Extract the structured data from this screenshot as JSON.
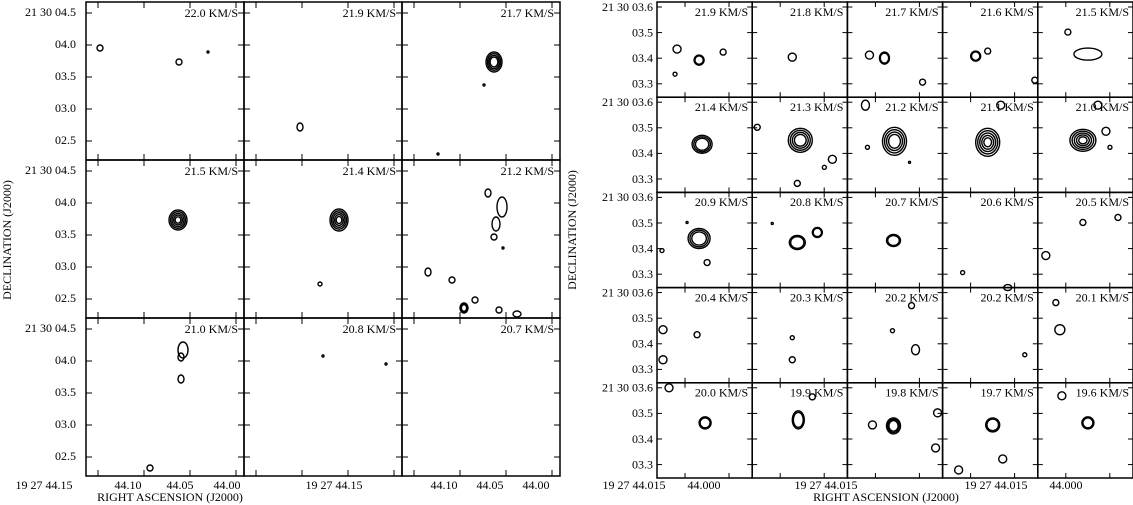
{
  "left_figure": {
    "panels": [
      "22.0 KM/S",
      "21.9 KM/S",
      "21.7 KM/S",
      "21.5 KM/S",
      "21.4 KM/S",
      "21.2 KM/S",
      "21.0 KM/S",
      "20.8 KM/S",
      "20.7 KM/S"
    ],
    "y_ticks": [
      [
        "21 30 04.5",
        "04.0",
        "03.5",
        "03.0",
        "02.5"
      ],
      [
        "21 30 04.5",
        "04.0",
        "03.5",
        "03.0",
        "02.5"
      ],
      [
        "21 30 04.5",
        "04.0",
        "03.5",
        "03.0",
        "02.5"
      ]
    ],
    "x_ticks": [
      [
        "19 27 44.15",
        "44.10",
        "44.05",
        "44.00"
      ],
      [
        "19 27 44.15"
      ],
      [
        "44.10",
        "44.05",
        "44.00"
      ]
    ],
    "x_label": "RIGHT ASCENSION (J2000)",
    "y_label": "DECLINATION (J2000)"
  },
  "right_figure": {
    "panels": [
      "21.9 KM/S",
      "21.8 KM/S",
      "21.7 KM/S",
      "21.6 KM/S",
      "21.5 KM/S",
      "21.4 KM/S",
      "21.3 KM/S",
      "21.2 KM/S",
      "21.1 KM/S",
      "21.0 KM/S",
      "20.9 KM/S",
      "20.8 KM/S",
      "20.7 KM/S",
      "20.6 KM/S",
      "20.5 KM/S",
      "20.4 KM/S",
      "20.3 KM/S",
      "20.2 KM/S",
      "20.2 KM/S",
      "20.1 KM/S",
      "20.0 KM/S",
      "19.9 KM/S",
      "19.8 KM/S",
      "19.7 KM/S",
      "19.6 KM/S"
    ],
    "y_ticks": [
      [
        "21 30 03.6",
        "03.5",
        "03.4",
        "03.3"
      ],
      [
        "21 30 03.6",
        "03.5",
        "03.4",
        "03.3"
      ],
      [
        "21 30 03.6",
        "03.5",
        "03.4",
        "03.3"
      ],
      [
        "21 30 03.6",
        "03.5",
        "03.4",
        "03.3"
      ],
      [
        "21 30 03.6",
        "03.5",
        "03.4",
        "03.3"
      ]
    ],
    "x_ticks": [
      [
        "19 27 44.015",
        "44.000"
      ],
      [
        "19 27 44.015"
      ],
      [
        "19 27 44.015",
        "44.000"
      ]
    ],
    "x_label": "RIGHT ASCENSION (J2000)",
    "y_label": "DECLINATION (J2000)"
  }
}
